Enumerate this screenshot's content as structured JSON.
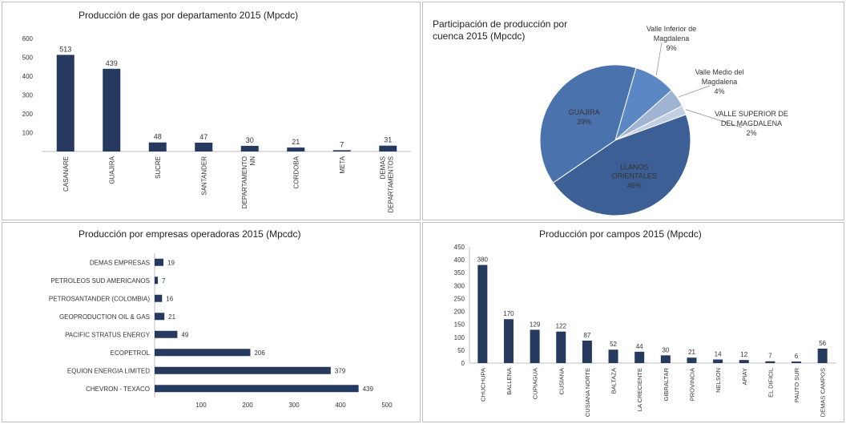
{
  "colors": {
    "bar": "#253a5e",
    "axis": "#bfbfbf",
    "grid": "#e6e6e6"
  },
  "chart_data": [
    {
      "type": "bar",
      "title": "Producción de gas por departamento 2015 (Mpcdc)",
      "categories": [
        "CASANARE",
        "GUAJIRA",
        "SUCRE",
        "SANTANDER",
        "DEPARTAMENTO NN",
        "CORDOBA",
        "META",
        "DEMAS DEPARTAMENTOS"
      ],
      "values": [
        513,
        439,
        48,
        47,
        30,
        21,
        7,
        31
      ],
      "ylim": [
        0,
        600
      ],
      "yticks": [
        100,
        200,
        300,
        400,
        500,
        600
      ],
      "ytick_labels": [
        "100",
        "200",
        "300",
        "400",
        "500",
        "600"
      ],
      "data_labels": [
        "513",
        "439",
        "48",
        "47",
        "30",
        "21",
        "7",
        "31"
      ],
      "grid": false
    },
    {
      "type": "pie",
      "title": "Participación de producción por cuenca 2015 (Mpcdc)",
      "slices": [
        {
          "label": "LLANOS ORIENTALES",
          "value": 46,
          "pct_label": "46%",
          "color": "#3c5f95"
        },
        {
          "label": "GUAJIRA",
          "value": 39,
          "pct_label": "39%",
          "color": "#4a72ad"
        },
        {
          "label": "Valle Inferior de Magdalena",
          "value": 9,
          "pct_label": "9%",
          "color": "#5b87c5"
        },
        {
          "label": "Valle Medio del Magdalena",
          "value": 4,
          "pct_label": "4%",
          "color": "#9fb3d3"
        },
        {
          "label": "VALLE SUPERIOR DEL MAGDALENA",
          "value": 2,
          "pct_label": "2%",
          "color": "#c2cfe3"
        }
      ]
    },
    {
      "type": "bar",
      "orientation": "horizontal",
      "title": "Producción por empresas operadoras 2015 (Mpcdc)",
      "categories": [
        "DEMAS EMPRESAS",
        "PETROLEOS SUD AMERICANOS",
        "PETROSANTANDER (COLOMBIA)",
        "GEOPRODUCTION OIL & GAS",
        "PACIFIC STRATUS ENERGY",
        "ECOPETROL",
        "EQUION ENERGIA LIMITED",
        "CHEVRON - TEXACO"
      ],
      "values": [
        19,
        7,
        16,
        21,
        49,
        206,
        379,
        439
      ],
      "data_labels": [
        "19",
        "7",
        "16",
        "21",
        "49",
        "206",
        "379",
        "439"
      ],
      "xlim": [
        0,
        500
      ],
      "xticks": [
        100,
        200,
        300,
        400,
        500
      ],
      "xtick_labels": [
        "100",
        "200",
        "300",
        "400",
        "500"
      ],
      "grid": false
    },
    {
      "type": "bar",
      "title": "Producción por campos 2015 (Mpcdc)",
      "categories": [
        "CHUCHUPA",
        "BALLENA",
        "CUPIAGUA",
        "CUSIANA",
        "CUSIANA NORTE",
        "BALTAZA",
        "LA CRECIENTE",
        "GIBRALTAR",
        "PROVINCIA",
        "NELSON",
        "APIAY",
        "EL DIFICIL",
        "PAUTO SUR",
        "DEMAS CAMPOS"
      ],
      "values": [
        380,
        170,
        129,
        122,
        87,
        52,
        44,
        30,
        21,
        14,
        12,
        7,
        6,
        56
      ],
      "data_labels": [
        "380",
        "170",
        "129",
        "122",
        "87",
        "52",
        "44",
        "30",
        "21",
        "14",
        "12",
        "7",
        "6",
        "56"
      ],
      "ylim": [
        0,
        450
      ],
      "yticks": [
        0,
        50,
        100,
        150,
        200,
        250,
        300,
        350,
        400,
        450
      ],
      "ytick_labels": [
        "0",
        "50",
        "100",
        "150",
        "200",
        "250",
        "300",
        "350",
        "400",
        "450"
      ],
      "grid": false
    }
  ]
}
